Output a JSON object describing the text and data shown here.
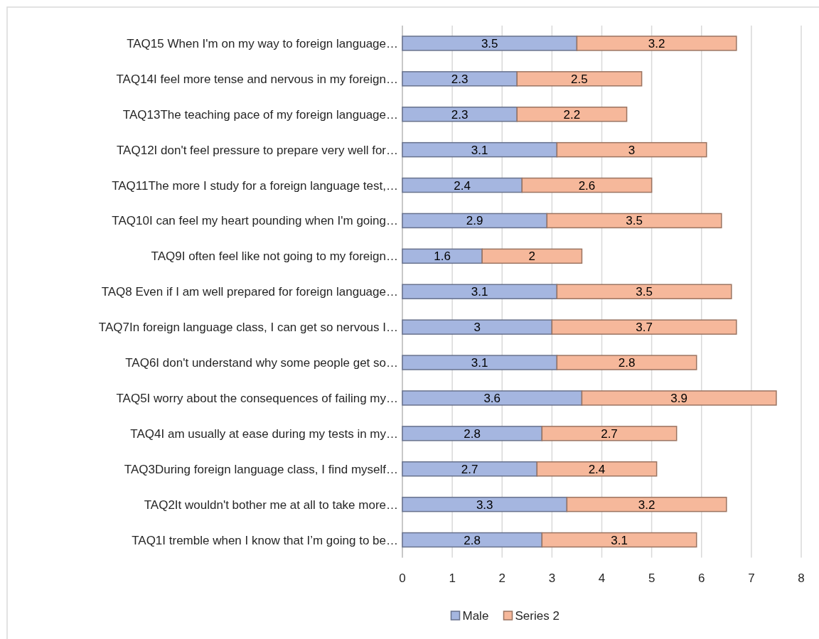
{
  "chart_data": {
    "type": "bar",
    "orientation": "horizontal",
    "stacked": true,
    "data_labels": true,
    "grid": "x",
    "legend": "bottom",
    "categories": [
      "TAQ15 When I'm on my way to foreign language…",
      "TAQ14I feel more tense and nervous in my foreign…",
      "TAQ13The teaching pace of my foreign language…",
      "TAQ12I don't feel pressure to prepare very well for…",
      "TAQ11The more I study for a foreign language test,…",
      "TAQ10I can feel my heart pounding when I'm going…",
      "TAQ9I often feel like not going to my foreign…",
      "TAQ8 Even if I am well prepared for foreign language…",
      "TAQ7In foreign language class, I can get so nervous I…",
      "TAQ6I don't understand why some people get so…",
      "TAQ5I worry about the consequences of failing my…",
      "TAQ4I am usually at ease during my tests in my…",
      "TAQ3During foreign language class, I find myself…",
      "TAQ2It wouldn't bother me at all to take more…",
      "TAQ1I tremble when I know that I’m going to be…"
    ],
    "series": [
      {
        "name": "Male",
        "color": "#a5b6e0",
        "values": [
          3.5,
          2.3,
          2.3,
          3.1,
          2.4,
          2.9,
          1.6,
          3.1,
          3,
          3.1,
          3.6,
          2.8,
          2.7,
          3.3,
          2.8
        ]
      },
      {
        "name": "Series 2",
        "color": "#f6b89b",
        "values": [
          3.2,
          2.5,
          2.2,
          3,
          2.6,
          3.5,
          2,
          3.5,
          3.7,
          2.8,
          3.9,
          2.7,
          2.4,
          3.2,
          3.1
        ]
      }
    ],
    "xlim": [
      0,
      8
    ],
    "xticks": [
      0,
      1,
      2,
      3,
      4,
      5,
      6,
      7,
      8
    ]
  }
}
